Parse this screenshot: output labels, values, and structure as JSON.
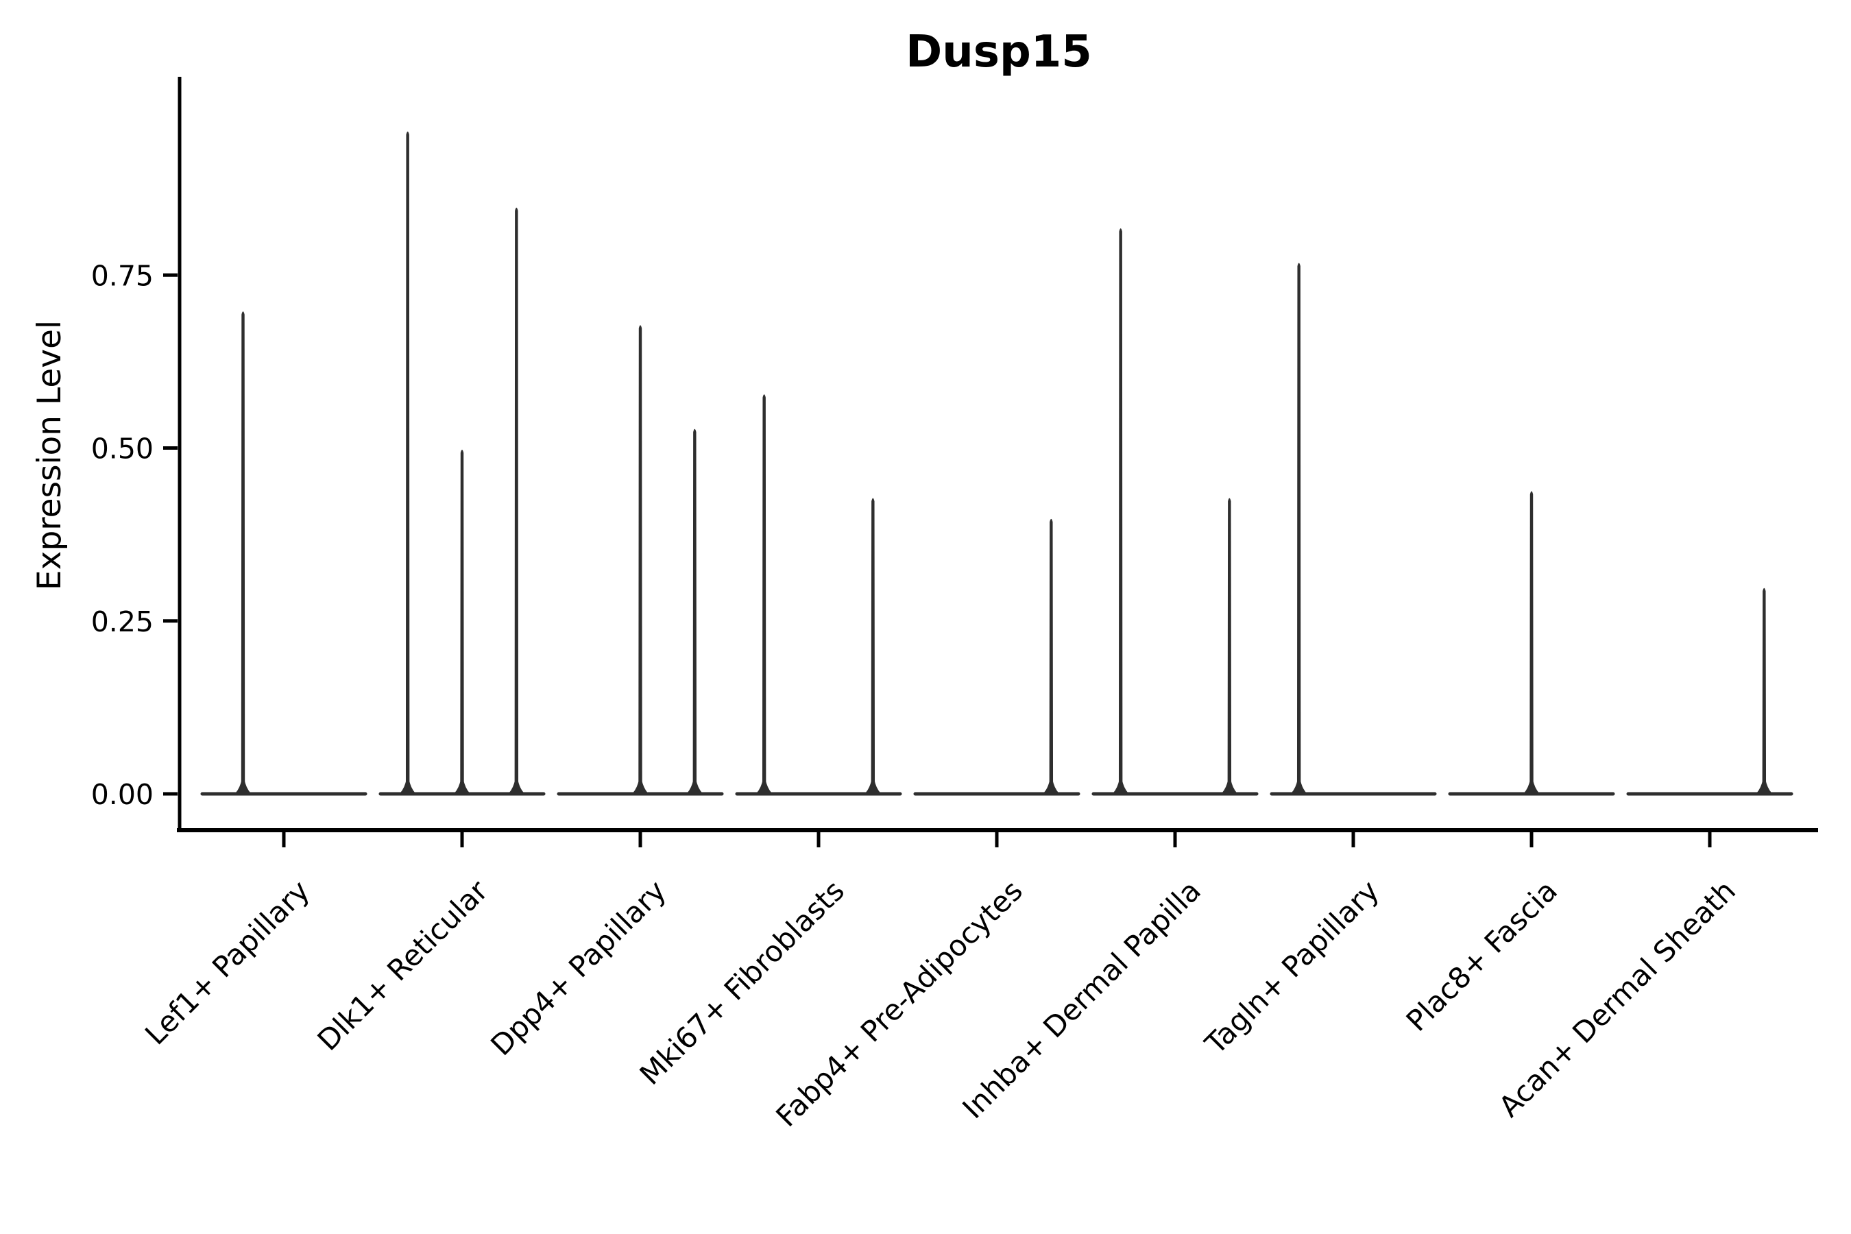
{
  "chart_data": {
    "type": "violin",
    "title": "Dusp15",
    "xlabel": "",
    "ylabel": "Expression Level",
    "ylim": [
      0,
      1.03
    ],
    "ytick_labels": [
      "0.00",
      "0.25",
      "0.50",
      "0.75"
    ],
    "ytick_values": [
      0,
      0.25,
      0.5,
      0.75
    ],
    "grid": false,
    "legend": false,
    "background_color": "#ffffff",
    "axis_color": "#000000",
    "violin_color": "#2e2e2e",
    "categories": [
      "Lef1+ Papillary",
      "Dlk1+ Reticular",
      "Dpp4+ Papillary",
      "Mki67+ Fibroblasts",
      "Fabp4+ Pre-Adipocytes",
      "Inhba+ Dermal Papilla",
      "Tagln+ Papillary",
      "Plac8+ Fascia",
      "Acan+ Dermal Sheath"
    ],
    "groups": [
      {
        "category": "Lef1+ Papillary",
        "violin_maxima": [
          0.7,
          0
        ]
      },
      {
        "category": "Dlk1+ Reticular",
        "violin_maxima": [
          0.96,
          0.5,
          0.85
        ]
      },
      {
        "category": "Dpp4+ Papillary",
        "violin_maxima": [
          0,
          0.68,
          0.53
        ]
      },
      {
        "category": "Mki67+ Fibroblasts",
        "violin_maxima": [
          0.58,
          0,
          0.43
        ]
      },
      {
        "category": "Fabp4+ Pre-Adipocytes",
        "violin_maxima": [
          0,
          0,
          0.4
        ]
      },
      {
        "category": "Inhba+ Dermal Papilla",
        "violin_maxima": [
          0.82,
          0,
          0.43
        ]
      },
      {
        "category": "Tagln+ Papillary",
        "violin_maxima": [
          0.77,
          0,
          0
        ]
      },
      {
        "category": "Plac8+ Fascia",
        "violin_maxima": [
          0,
          0.44,
          0
        ]
      },
      {
        "category": "Acan+ Dermal Sheath",
        "violin_maxima": [
          0,
          0,
          0.3
        ]
      }
    ]
  }
}
